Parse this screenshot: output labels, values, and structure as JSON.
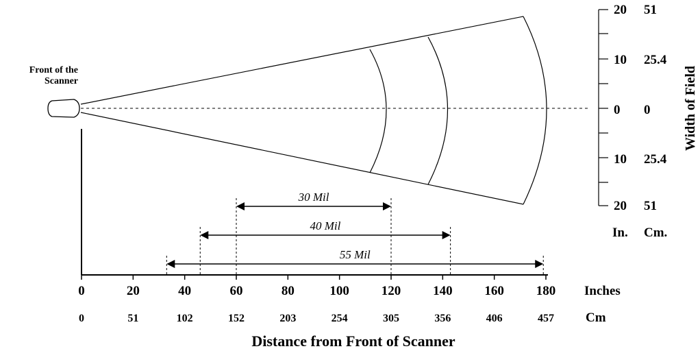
{
  "scanner_label": [
    "Front of the",
    "Scanner"
  ],
  "x_axis": {
    "title": "Distance from Front of Scanner",
    "inches_label": "Inches",
    "cm_label": "Cm",
    "inches_ticks": [
      "0",
      "20",
      "40",
      "60",
      "80",
      "100",
      "120",
      "140",
      "160",
      "180"
    ],
    "cm_ticks": [
      "0",
      "51",
      "102",
      "152",
      "203",
      "254",
      "305",
      "356",
      "406",
      "457"
    ]
  },
  "y_axis": {
    "title": "Width of Field",
    "in_ticks": [
      "20",
      "10",
      "0",
      "10",
      "20"
    ],
    "cm_ticks": [
      "51",
      "25.4",
      "0",
      "25.4",
      "51"
    ],
    "in_unit": "In.",
    "cm_unit": "Cm."
  },
  "ranges": [
    {
      "label": "30 Mil",
      "start_in": 60,
      "end_in": 120
    },
    {
      "label": "40 Mil",
      "start_in": 46,
      "end_in": 143
    },
    {
      "label": "55 Mil",
      "start_in": 33,
      "end_in": 179
    }
  ]
}
